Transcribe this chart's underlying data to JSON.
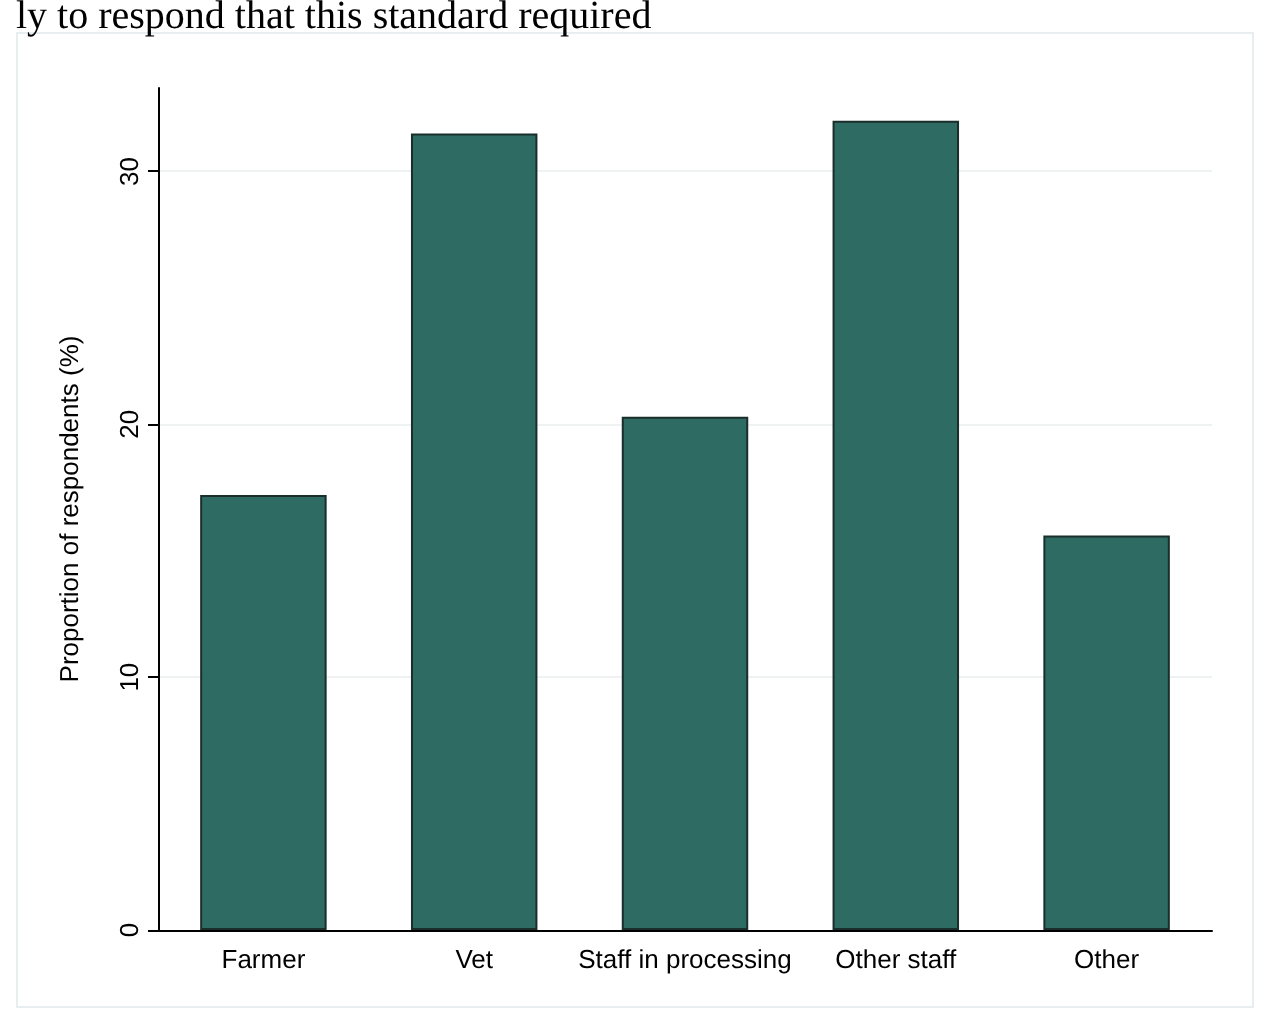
{
  "chart_data": {
    "type": "bar",
    "ylabel": "Proportion of respondents (%)",
    "categories": [
      "Farmer",
      "Vet",
      "Staff in processing",
      "Other staff",
      "Other"
    ],
    "values": [
      17.2,
      31.5,
      20.3,
      32.0,
      15.6
    ],
    "color": "#2e6b63",
    "ylim": [
      0,
      33.3
    ],
    "yticks": [
      0,
      10,
      20,
      30
    ],
    "grid": "y",
    "annotations": [
      "ly to respond that this standard required"
    ]
  }
}
